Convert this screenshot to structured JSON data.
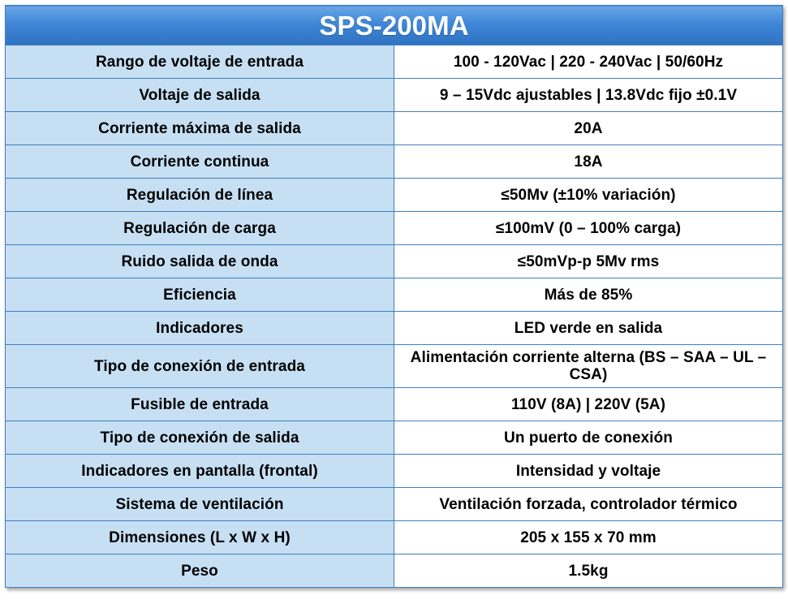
{
  "title": "SPS-200MA",
  "specs": [
    {
      "label": "Rango de voltaje de entrada",
      "value": "100 - 120Vac | 220 - 240Vac | 50/60Hz"
    },
    {
      "label": "Voltaje de  salida",
      "value": "9 – 15Vdc ajustables | 13.8Vdc fijo ±0.1V"
    },
    {
      "label": "Corriente máxima de salida",
      "value": "20A"
    },
    {
      "label": "Corriente continua",
      "value": "18A"
    },
    {
      "label": "Regulación de línea",
      "value": "≤50Mv (±10% variación)"
    },
    {
      "label": "Regulación de carga",
      "value": "≤100mV (0 – 100% carga)"
    },
    {
      "label": "Ruido salida de onda",
      "value": "≤50mVp-p 5Mv rms"
    },
    {
      "label": "Eficiencia",
      "value": "Más de 85%"
    },
    {
      "label": "Indicadores",
      "value": "LED verde en salida"
    },
    {
      "label": "Tipo de conexión de entrada",
      "value": "Alimentación corriente alterna (BS – SAA – UL – CSA)"
    },
    {
      "label": "Fusible de entrada",
      "value": "110V (8A) | 220V (5A)"
    },
    {
      "label": "Tipo de conexión de salida",
      "value": "Un puerto de conexión"
    },
    {
      "label": "Indicadores en pantalla (frontal)",
      "value": "Intensidad  y voltaje"
    },
    {
      "label": "Sistema de ventilación",
      "value": "Ventilación forzada, controlador térmico"
    },
    {
      "label": "Dimensiones (L x W x H)",
      "value": "205 x 155 x 70 mm"
    },
    {
      "label": "Peso",
      "value": "1.5kg"
    }
  ]
}
